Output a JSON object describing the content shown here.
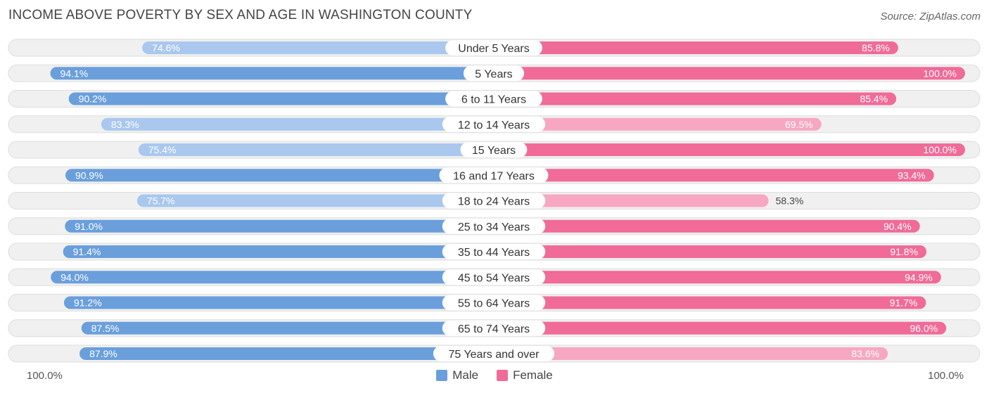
{
  "title": "INCOME ABOVE POVERTY BY SEX AND AGE IN WASHINGTON COUNTY",
  "source": "Source: ZipAtlas.com",
  "axis": {
    "left_label": "100.0%",
    "right_label": "100.0%"
  },
  "legend": [
    {
      "label": "Male",
      "color": "#6a9fdc"
    },
    {
      "label": "Female",
      "color": "#f06b97"
    }
  ],
  "colors": {
    "male_strong": "#6a9fdc",
    "male_light": "#aac8ee",
    "female_strong": "#f06b97",
    "female_light": "#f7a7c1",
    "track": "#f0f0f0",
    "track_border": "#dddddd"
  },
  "chart_data": {
    "type": "bar",
    "orientation": "horizontal-diverging",
    "title": "INCOME ABOVE POVERTY BY SEX AND AGE IN WASHINGTON COUNTY",
    "xlim": [
      0,
      100
    ],
    "categories": [
      "Under 5 Years",
      "5 Years",
      "6 to 11 Years",
      "12 to 14 Years",
      "15 Years",
      "16 and 17 Years",
      "18 to 24 Years",
      "25 to 34 Years",
      "35 to 44 Years",
      "45 to 54 Years",
      "55 to 64 Years",
      "65 to 74 Years",
      "75 Years and over"
    ],
    "series": [
      {
        "name": "Male",
        "values": [
          74.6,
          94.1,
          90.2,
          83.3,
          75.4,
          90.9,
          75.7,
          91.0,
          91.4,
          94.0,
          91.2,
          87.5,
          87.9
        ],
        "labels": [
          "74.6%",
          "94.1%",
          "90.2%",
          "83.3%",
          "75.4%",
          "90.9%",
          "75.7%",
          "91.0%",
          "91.4%",
          "94.0%",
          "91.2%",
          "87.5%",
          "87.9%"
        ]
      },
      {
        "name": "Female",
        "values": [
          85.8,
          100.0,
          85.4,
          69.5,
          100.0,
          93.4,
          58.3,
          90.4,
          91.8,
          94.9,
          91.7,
          96.0,
          83.6
        ],
        "labels": [
          "85.8%",
          "100.0%",
          "85.4%",
          "69.5%",
          "100.0%",
          "93.4%",
          "58.3%",
          "90.4%",
          "91.8%",
          "94.9%",
          "91.7%",
          "96.0%",
          "83.6%"
        ]
      }
    ]
  }
}
